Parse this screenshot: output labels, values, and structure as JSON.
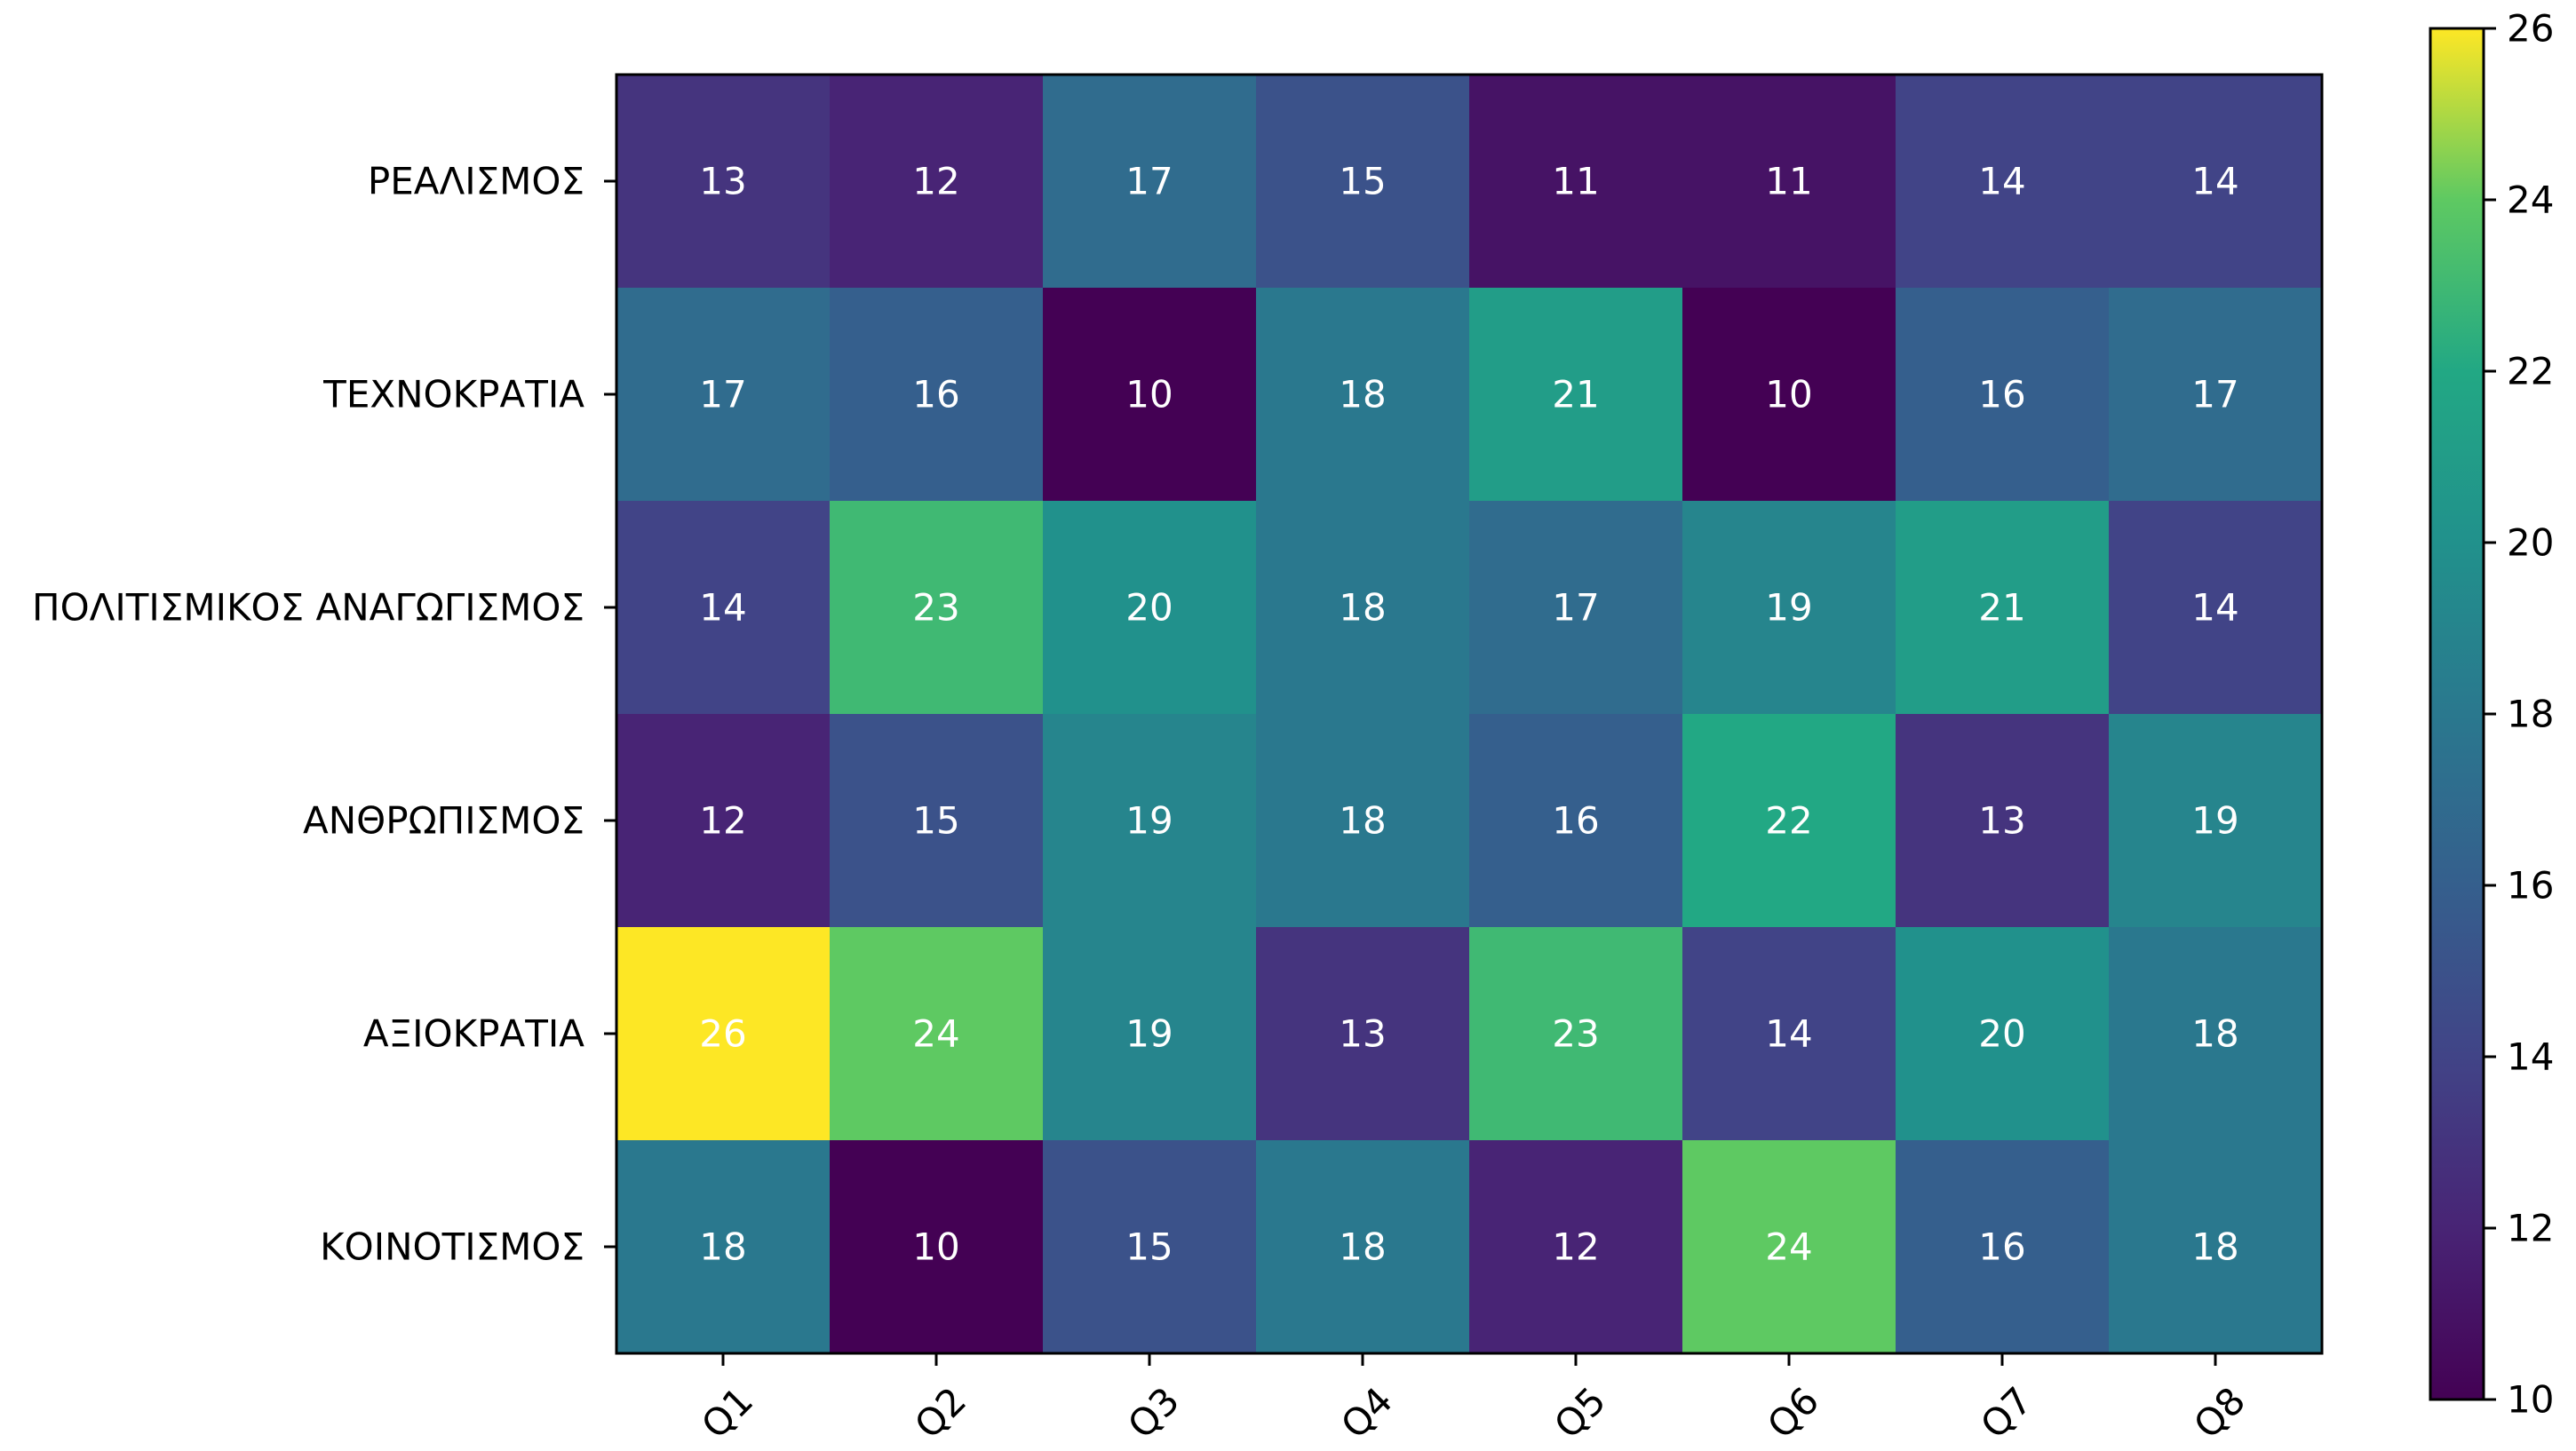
{
  "chart_data": {
    "type": "heatmap",
    "title": "",
    "xlabel": "",
    "ylabel": "",
    "columns": [
      "Q1",
      "Q2",
      "Q3",
      "Q4",
      "Q5",
      "Q6",
      "Q7",
      "Q8"
    ],
    "rows": [
      "ΡΕΑΛΙΣΜΟΣ",
      "ΤΕΧΝΟΚΡΑΤΙΑ",
      "ΠΟΛΙΤΙΣΜΙΚΟΣ ΑΝΑΓΩΓΙΣΜΟΣ",
      "ΑΝΘΡΩΠΙΣΜΟΣ",
      "ΑΞΙΟΚΡΑΤΙΑ",
      "ΚΟΙΝΟΤΙΣΜΟΣ"
    ],
    "values": [
      [
        13,
        12,
        17,
        15,
        11,
        11,
        14,
        14
      ],
      [
        17,
        16,
        10,
        18,
        21,
        10,
        16,
        17
      ],
      [
        14,
        23,
        20,
        18,
        17,
        19,
        21,
        14
      ],
      [
        12,
        15,
        19,
        18,
        16,
        22,
        13,
        19
      ],
      [
        26,
        24,
        19,
        13,
        23,
        14,
        20,
        18
      ],
      [
        18,
        10,
        15,
        18,
        12,
        24,
        16,
        18
      ]
    ],
    "colormap": "viridis",
    "vmin": 10,
    "vmax": 26,
    "colorbar": {
      "ticks": [
        10,
        12,
        14,
        16,
        18,
        20,
        22,
        24,
        26
      ],
      "placement": "right"
    },
    "cell_label_color": "#ffffff",
    "grid": false
  }
}
